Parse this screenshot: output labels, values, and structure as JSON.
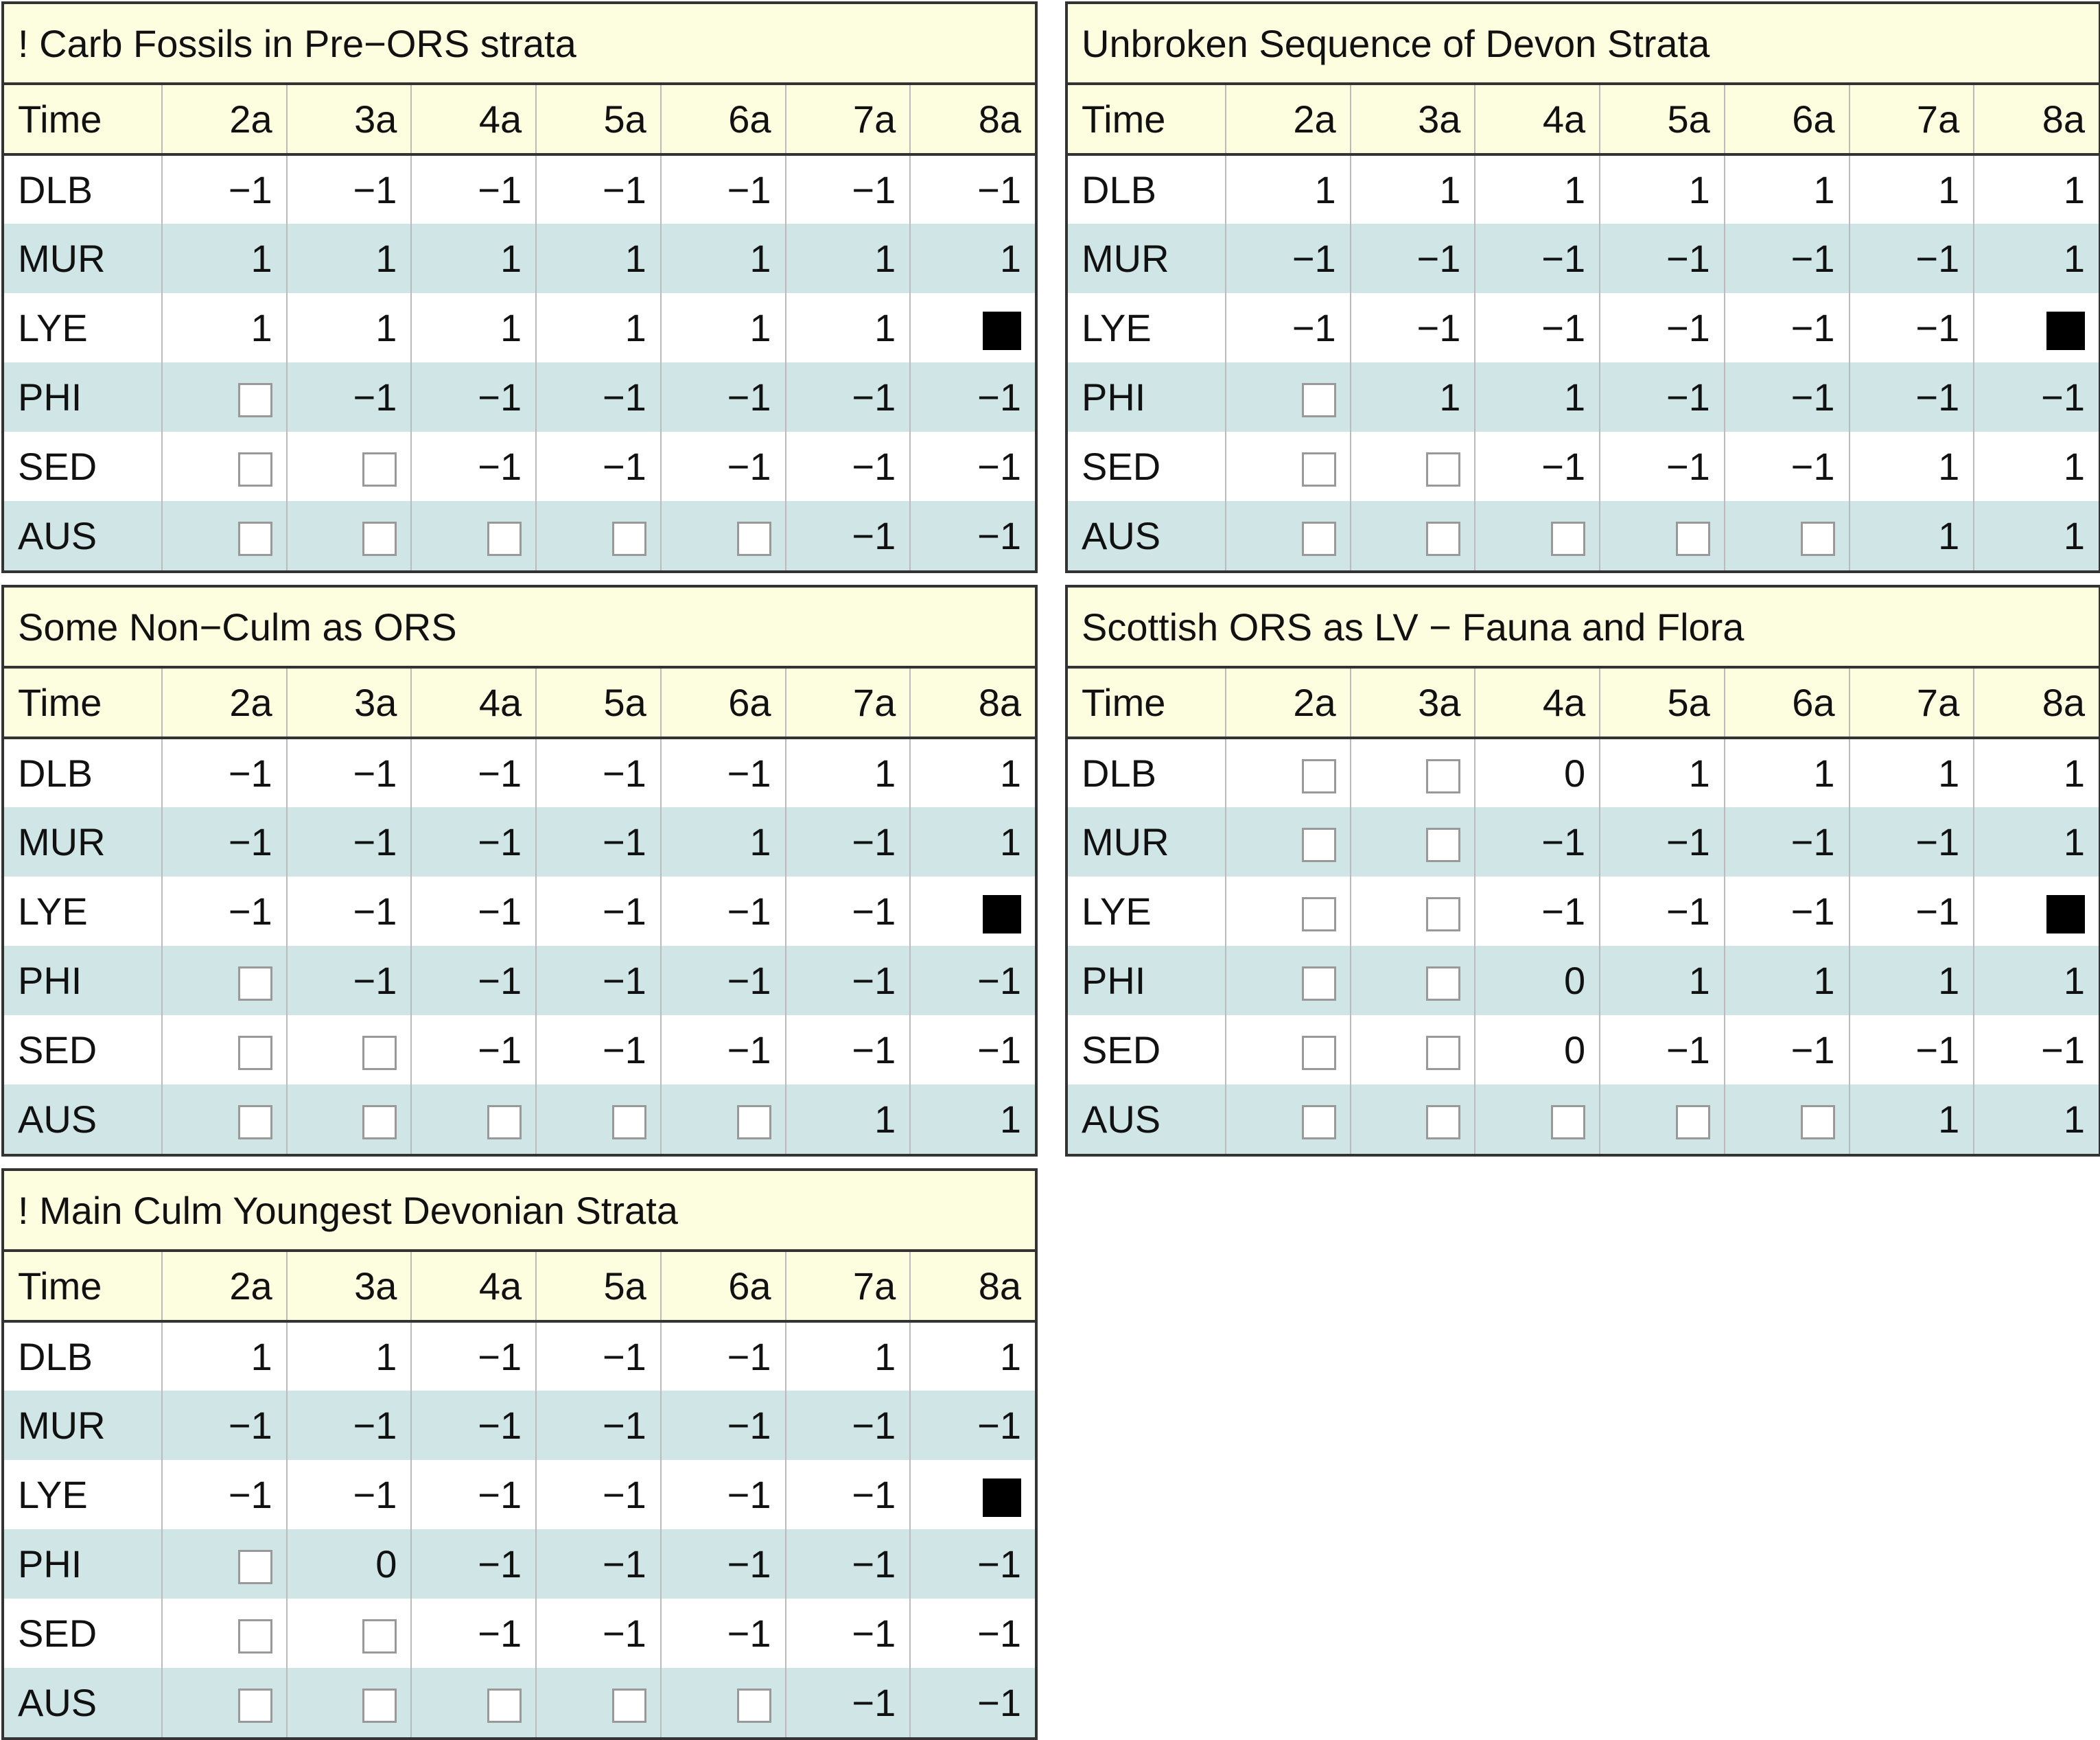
{
  "chart_data": [
    {
      "type": "table",
      "title": "! Carb Fossils in Pre−ORS strata",
      "columns": [
        "Time",
        "2a",
        "3a",
        "4a",
        "5a",
        "6a",
        "7a",
        "8a"
      ],
      "rows": [
        {
          "label": "DLB",
          "cells": [
            "−1",
            "−1",
            "−1",
            "−1",
            "−1",
            "−1",
            "−1"
          ]
        },
        {
          "label": "MUR",
          "cells": [
            "1",
            "1",
            "1",
            "1",
            "1",
            "1",
            "1"
          ]
        },
        {
          "label": "LYE",
          "cells": [
            "1",
            "1",
            "1",
            "1",
            "1",
            "1",
            "filled"
          ]
        },
        {
          "label": "PHI",
          "cells": [
            "empty",
            "−1",
            "−1",
            "−1",
            "−1",
            "−1",
            "−1"
          ]
        },
        {
          "label": "SED",
          "cells": [
            "empty",
            "empty",
            "−1",
            "−1",
            "−1",
            "−1",
            "−1"
          ]
        },
        {
          "label": "AUS",
          "cells": [
            "empty",
            "empty",
            "empty",
            "empty",
            "empty",
            "−1",
            "−1"
          ]
        }
      ]
    },
    {
      "type": "table",
      "title": "Unbroken Sequence of Devon Strata",
      "columns": [
        "Time",
        "2a",
        "3a",
        "4a",
        "5a",
        "6a",
        "7a",
        "8a"
      ],
      "rows": [
        {
          "label": "DLB",
          "cells": [
            "1",
            "1",
            "1",
            "1",
            "1",
            "1",
            "1"
          ]
        },
        {
          "label": "MUR",
          "cells": [
            "−1",
            "−1",
            "−1",
            "−1",
            "−1",
            "−1",
            "1"
          ]
        },
        {
          "label": "LYE",
          "cells": [
            "−1",
            "−1",
            "−1",
            "−1",
            "−1",
            "−1",
            "filled"
          ]
        },
        {
          "label": "PHI",
          "cells": [
            "empty",
            "1",
            "1",
            "−1",
            "−1",
            "−1",
            "−1"
          ]
        },
        {
          "label": "SED",
          "cells": [
            "empty",
            "empty",
            "−1",
            "−1",
            "−1",
            "1",
            "1"
          ]
        },
        {
          "label": "AUS",
          "cells": [
            "empty",
            "empty",
            "empty",
            "empty",
            "empty",
            "1",
            "1"
          ]
        }
      ]
    },
    {
      "type": "table",
      "title": "Some Non−Culm as ORS",
      "columns": [
        "Time",
        "2a",
        "3a",
        "4a",
        "5a",
        "6a",
        "7a",
        "8a"
      ],
      "rows": [
        {
          "label": "DLB",
          "cells": [
            "−1",
            "−1",
            "−1",
            "−1",
            "−1",
            "1",
            "1"
          ]
        },
        {
          "label": "MUR",
          "cells": [
            "−1",
            "−1",
            "−1",
            "−1",
            "1",
            "−1",
            "1"
          ]
        },
        {
          "label": "LYE",
          "cells": [
            "−1",
            "−1",
            "−1",
            "−1",
            "−1",
            "−1",
            "filled"
          ]
        },
        {
          "label": "PHI",
          "cells": [
            "empty",
            "−1",
            "−1",
            "−1",
            "−1",
            "−1",
            "−1"
          ]
        },
        {
          "label": "SED",
          "cells": [
            "empty",
            "empty",
            "−1",
            "−1",
            "−1",
            "−1",
            "−1"
          ]
        },
        {
          "label": "AUS",
          "cells": [
            "empty",
            "empty",
            "empty",
            "empty",
            "empty",
            "1",
            "1"
          ]
        }
      ]
    },
    {
      "type": "table",
      "title": "Scottish ORS as LV − Fauna and Flora",
      "columns": [
        "Time",
        "2a",
        "3a",
        "4a",
        "5a",
        "6a",
        "7a",
        "8a"
      ],
      "rows": [
        {
          "label": "DLB",
          "cells": [
            "empty",
            "empty",
            "0",
            "1",
            "1",
            "1",
            "1"
          ]
        },
        {
          "label": "MUR",
          "cells": [
            "empty",
            "empty",
            "−1",
            "−1",
            "−1",
            "−1",
            "1"
          ]
        },
        {
          "label": "LYE",
          "cells": [
            "empty",
            "empty",
            "−1",
            "−1",
            "−1",
            "−1",
            "filled"
          ]
        },
        {
          "label": "PHI",
          "cells": [
            "empty",
            "empty",
            "0",
            "1",
            "1",
            "1",
            "1"
          ]
        },
        {
          "label": "SED",
          "cells": [
            "empty",
            "empty",
            "0",
            "−1",
            "−1",
            "−1",
            "−1"
          ]
        },
        {
          "label": "AUS",
          "cells": [
            "empty",
            "empty",
            "empty",
            "empty",
            "empty",
            "1",
            "1"
          ]
        }
      ]
    },
    {
      "type": "table",
      "title": "! Main Culm Youngest Devonian Strata",
      "columns": [
        "Time",
        "2a",
        "3a",
        "4a",
        "5a",
        "6a",
        "7a",
        "8a"
      ],
      "rows": [
        {
          "label": "DLB",
          "cells": [
            "1",
            "1",
            "−1",
            "−1",
            "−1",
            "1",
            "1"
          ]
        },
        {
          "label": "MUR",
          "cells": [
            "−1",
            "−1",
            "−1",
            "−1",
            "−1",
            "−1",
            "−1"
          ]
        },
        {
          "label": "LYE",
          "cells": [
            "−1",
            "−1",
            "−1",
            "−1",
            "−1",
            "−1",
            "filled"
          ]
        },
        {
          "label": "PHI",
          "cells": [
            "empty",
            "0",
            "−1",
            "−1",
            "−1",
            "−1",
            "−1"
          ]
        },
        {
          "label": "SED",
          "cells": [
            "empty",
            "empty",
            "−1",
            "−1",
            "−1",
            "−1",
            "−1"
          ]
        },
        {
          "label": "AUS",
          "cells": [
            "empty",
            "empty",
            "empty",
            "empty",
            "empty",
            "−1",
            "−1"
          ]
        }
      ]
    }
  ],
  "colors": {
    "header_bg": "#fdfde0",
    "alt_row_bg": "#cfe5e6",
    "border": "#333333",
    "divider": "#bbbbbb",
    "filled_marker": "#000000"
  }
}
